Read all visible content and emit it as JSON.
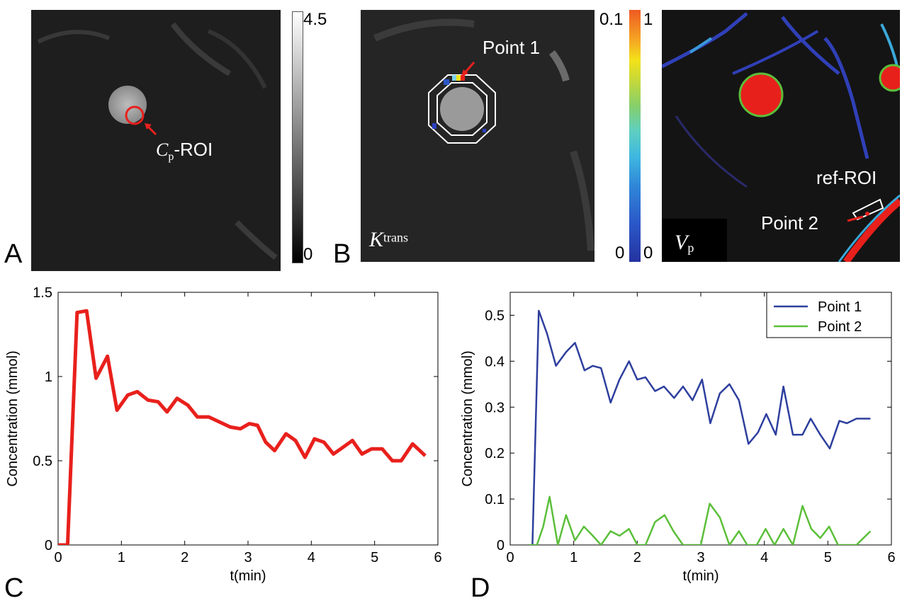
{
  "figure": {
    "panel_letters": {
      "a": "A",
      "b": "B",
      "c": "C",
      "d": "D"
    },
    "panel_a": {
      "annotation": {
        "main": "C",
        "sub": "p",
        "suffix": "-ROI"
      },
      "colorbar": {
        "max_label": "4.5",
        "min_label": "0"
      }
    },
    "panel_b": {
      "annotation": "Point 1",
      "map_label": {
        "main": "K",
        "sup": "trans"
      },
      "colorbar": {
        "max_label": "0.1",
        "min_label": "0"
      }
    },
    "panel_vp": {
      "colorbar": {
        "max_label": "1",
        "min_label": "0"
      },
      "map_label": {
        "main": "V",
        "sub": "p"
      },
      "ref_label": "ref-ROI",
      "point_label": "Point 2"
    },
    "colors": {
      "red_curve": "#e8201c",
      "point1": "#2e3f9e",
      "point2": "#5bbf3a",
      "roi_red": "#e8201c"
    }
  },
  "chart_data": [
    {
      "type": "line",
      "panel": "C",
      "xlabel": "t(min)",
      "ylabel": "Concentration (mmol)",
      "xlim": [
        0,
        6
      ],
      "ylim": [
        0,
        1.5
      ],
      "xticks": [
        0,
        1,
        2,
        3,
        4,
        5,
        6
      ],
      "yticks": [
        0,
        0.5,
        1,
        1.5
      ],
      "xtick_labels": [
        "0",
        "1",
        "2",
        "3",
        "4",
        "5",
        "6"
      ],
      "ytick_labels": [
        "0",
        "0.5",
        "1",
        "1.5"
      ],
      "grid": false,
      "series": [
        {
          "color": "#e8201c",
          "x": [
            0.0,
            0.15,
            0.3,
            0.45,
            0.6,
            0.78,
            0.93,
            1.1,
            1.25,
            1.42,
            1.58,
            1.72,
            1.88,
            2.05,
            2.2,
            2.38,
            2.55,
            2.72,
            2.88,
            3.02,
            3.15,
            3.28,
            3.42,
            3.6,
            3.75,
            3.9,
            4.05,
            4.2,
            4.35,
            4.5,
            4.65,
            4.8,
            4.95,
            5.12,
            5.28,
            5.42,
            5.6,
            5.8
          ],
          "values": [
            0.0,
            0.0,
            1.38,
            1.39,
            0.99,
            1.12,
            0.8,
            0.89,
            0.91,
            0.86,
            0.85,
            0.79,
            0.87,
            0.83,
            0.76,
            0.76,
            0.73,
            0.7,
            0.69,
            0.72,
            0.71,
            0.61,
            0.56,
            0.66,
            0.62,
            0.52,
            0.63,
            0.61,
            0.54,
            0.58,
            0.62,
            0.54,
            0.57,
            0.57,
            0.5,
            0.5,
            0.6,
            0.53
          ]
        }
      ]
    },
    {
      "type": "line",
      "panel": "D",
      "xlabel": "t(min)",
      "ylabel": "Concentration (mmol)",
      "xlim": [
        0,
        6
      ],
      "ylim": [
        0,
        0.55
      ],
      "xticks": [
        0,
        1,
        2,
        3,
        4,
        5,
        6
      ],
      "yticks": [
        0,
        0.1,
        0.2,
        0.3,
        0.4,
        0.5
      ],
      "xtick_labels": [
        "0",
        "1",
        "2",
        "3",
        "4",
        "5",
        "6"
      ],
      "ytick_labels": [
        "0",
        "0.1",
        "0.2",
        "0.3",
        "0.4",
        "0.5"
      ],
      "grid": false,
      "legend": "top-right",
      "series": [
        {
          "name": "Point 1",
          "color": "#2e3f9e",
          "x": [
            0.35,
            0.45,
            0.58,
            0.72,
            0.88,
            1.02,
            1.17,
            1.3,
            1.43,
            1.58,
            1.72,
            1.87,
            2.0,
            2.13,
            2.28,
            2.42,
            2.58,
            2.72,
            2.87,
            3.02,
            3.15,
            3.3,
            3.45,
            3.6,
            3.75,
            3.9,
            4.03,
            4.18,
            4.3,
            4.45,
            4.6,
            4.73,
            4.88,
            5.03,
            5.18,
            5.3,
            5.45,
            5.67
          ],
          "values": [
            0.0,
            0.51,
            0.46,
            0.39,
            0.42,
            0.44,
            0.38,
            0.39,
            0.385,
            0.31,
            0.36,
            0.4,
            0.36,
            0.365,
            0.335,
            0.345,
            0.32,
            0.345,
            0.315,
            0.36,
            0.265,
            0.33,
            0.35,
            0.315,
            0.22,
            0.245,
            0.285,
            0.24,
            0.345,
            0.24,
            0.24,
            0.275,
            0.24,
            0.21,
            0.27,
            0.265,
            0.275,
            0.275
          ]
        },
        {
          "name": "Point 2",
          "color": "#5bbf3a",
          "x": [
            0.3,
            0.42,
            0.52,
            0.62,
            0.75,
            0.88,
            1.02,
            1.16,
            1.3,
            1.43,
            1.58,
            1.72,
            1.87,
            2.0,
            2.13,
            2.28,
            2.43,
            2.57,
            2.72,
            2.86,
            3.0,
            3.14,
            3.3,
            3.45,
            3.6,
            3.73,
            3.88,
            4.02,
            4.16,
            4.3,
            4.45,
            4.6,
            4.74,
            4.88,
            5.02,
            5.16,
            5.3,
            5.45,
            5.67
          ],
          "values": [
            0.0,
            0.0,
            0.04,
            0.105,
            0.0,
            0.065,
            0.01,
            0.04,
            0.02,
            0.0,
            0.03,
            0.02,
            0.035,
            0.0,
            0.0,
            0.05,
            0.065,
            0.03,
            0.0,
            0.0,
            0.0,
            0.09,
            0.06,
            0.0,
            0.03,
            0.0,
            0.0,
            0.035,
            0.0,
            0.035,
            0.0,
            0.085,
            0.035,
            0.015,
            0.04,
            0.0,
            0.0,
            0.0,
            0.03
          ]
        }
      ]
    }
  ]
}
